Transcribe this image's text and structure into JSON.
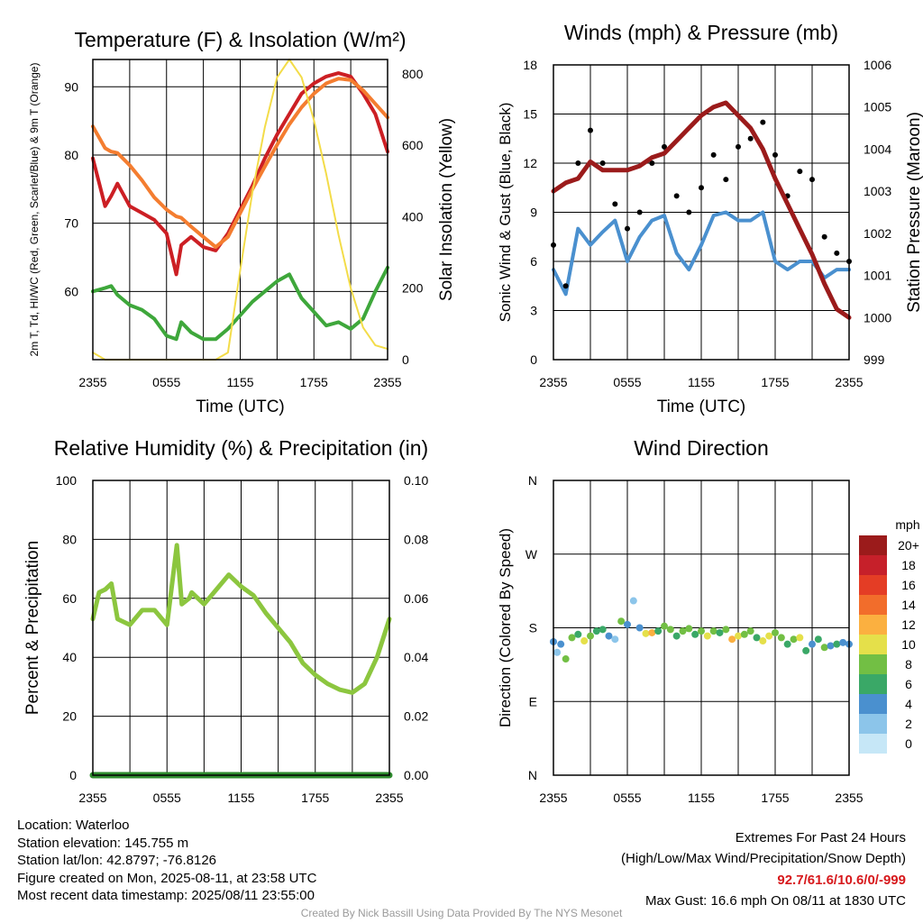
{
  "titles": {
    "temp": "Temperature (F) & Insolation (W/m²)",
    "wind": "Winds (mph) & Pressure (mb)",
    "rh": "Relative Humidity (%) & Precipitation (in)",
    "wdir": "Wind Direction"
  },
  "colors": {
    "red": "#cc1f24",
    "orange": "#f47d30",
    "green": "#3ea73b",
    "yellow": "#f3dc49",
    "blue": "#4a90cf",
    "black": "#000000",
    "maroon": "#9b1b1b",
    "lightgreen": "#8cc63f",
    "precip": "#2e8b2e"
  },
  "time_ticks": [
    "2355",
    "0555",
    "1155",
    "1755",
    "2355"
  ],
  "info": {
    "location": "Location: Waterloo",
    "elevation": "Station elevation: 145.755 m",
    "latlon": "Station lat/lon: 42.8797; -76.8126",
    "created": "Figure created on Mon, 2025-08-11, at 23:58 UTC",
    "recent": "Most recent data timestamp: 2025/08/11 23:55:00"
  },
  "extremes": {
    "title": "Extremes For Past 24 Hours",
    "subtitle": "(High/Low/Max Wind/Precipitation/Snow Depth)",
    "values": "92.7/61.6/10.6/0/-999",
    "gust": "Max Gust: 16.6 mph On 08/11 at 1830 UTC"
  },
  "credit": "Created By Nick Bassill Using Data Provided By The NYS Mesonet",
  "chart_data": [
    {
      "type": "line",
      "title": "Temperature (F) & Insolation (W/m²)",
      "xlabel": "Time (UTC)",
      "ylabel_left": "2m T, Td, HI/WC (Red, Green, Scarlet/Blue) & 9m T (Orange)",
      "ylabel_right": "Solar Insolation (Yellow)",
      "x_ticks": [
        "2355",
        "0555",
        "1155",
        "1755",
        "2355"
      ],
      "ylim": [
        50,
        94
      ],
      "y_ticks": [
        60,
        70,
        80,
        90
      ],
      "y2lim": [
        0,
        840
      ],
      "y2_ticks": [
        0,
        200,
        400,
        600,
        800
      ],
      "x_hours": [
        0,
        1,
        1.5,
        2,
        3,
        4,
        5,
        6,
        6.8,
        7.2,
        8,
        9,
        10,
        11,
        12,
        13,
        14,
        15,
        16,
        17,
        18,
        19,
        20,
        21,
        22,
        23,
        24
      ],
      "series": [
        {
          "name": "2m T",
          "color": "red",
          "axis": "left",
          "values": [
            79.5,
            72.5,
            74,
            75.8,
            72.5,
            71.5,
            70.5,
            68.5,
            62.5,
            66.8,
            68,
            66.5,
            66,
            68.5,
            72,
            75.5,
            79.5,
            83,
            86,
            89,
            90.5,
            91.5,
            92,
            91.5,
            89,
            86,
            80.5
          ]
        },
        {
          "name": "9m T",
          "color": "orange",
          "axis": "left",
          "values": [
            84.2,
            81,
            80.5,
            80.3,
            78.5,
            76.3,
            73.8,
            72,
            71,
            70.8,
            69.5,
            68,
            66.5,
            68,
            71.5,
            75,
            78.3,
            81.5,
            84.5,
            87,
            89,
            90.5,
            91.2,
            91,
            89.5,
            87.5,
            85.5
          ]
        },
        {
          "name": "Td",
          "color": "green",
          "axis": "left",
          "values": [
            60,
            60.5,
            60.8,
            59.5,
            58,
            57.3,
            56,
            53.5,
            53,
            55.5,
            54,
            53,
            53,
            54.5,
            56.5,
            58.5,
            60,
            61.5,
            62.5,
            59,
            57,
            55,
            55.5,
            54.5,
            56,
            60,
            63.5
          ]
        },
        {
          "name": "Solar",
          "color": "yellow",
          "axis": "right",
          "values": [
            20,
            0,
            0,
            0,
            0,
            0,
            0,
            0,
            0,
            0,
            0,
            0,
            0,
            20,
            250,
            470,
            650,
            790,
            840,
            790,
            670,
            520,
            350,
            200,
            90,
            40,
            30
          ]
        }
      ]
    },
    {
      "type": "line",
      "title": "Winds (mph) & Pressure (mb)",
      "xlabel": "Time (UTC)",
      "ylabel_left": "Sonic Wind & Gust (Blue, Black)",
      "ylabel_right": "Station Pressure (Maroon)",
      "x_ticks": [
        "2355",
        "0555",
        "1155",
        "1755",
        "2355"
      ],
      "ylim": [
        0,
        18
      ],
      "y_ticks": [
        0,
        3,
        6,
        9,
        12,
        15,
        18
      ],
      "y2lim": [
        999,
        1006
      ],
      "y2_ticks": [
        999,
        1000,
        1001,
        1002,
        1003,
        1004,
        1005,
        1006
      ],
      "x_hours": [
        0,
        1,
        2,
        3,
        4,
        5,
        6,
        7,
        8,
        9,
        10,
        11,
        12,
        13,
        14,
        15,
        16,
        17,
        18,
        19,
        20,
        21,
        22,
        23,
        24
      ],
      "series": [
        {
          "name": "Wind",
          "color": "blue",
          "axis": "left",
          "values": [
            5.5,
            4,
            8,
            7,
            7.8,
            8.5,
            6,
            7.5,
            8.5,
            8.8,
            6.5,
            5.5,
            7,
            8.8,
            9,
            8.5,
            8.5,
            9,
            6,
            5.5,
            6,
            6,
            5,
            5.5,
            5.5
          ]
        },
        {
          "name": "Gust",
          "color": "black",
          "axis": "left",
          "style": "dots",
          "values": [
            7,
            4.5,
            12,
            14,
            12,
            9.5,
            8,
            9,
            12,
            13,
            10,
            9,
            10.5,
            12.5,
            11,
            13,
            13.5,
            14.5,
            12.5,
            10,
            11.5,
            11,
            7.5,
            6.5,
            6
          ]
        },
        {
          "name": "Pressure",
          "color": "maroon",
          "axis": "right",
          "values": [
            1003.0,
            1003.2,
            1003.3,
            1003.7,
            1003.5,
            1003.5,
            1003.5,
            1003.6,
            1003.8,
            1003.9,
            1004.2,
            1004.5,
            1004.8,
            1005.0,
            1005.1,
            1004.8,
            1004.5,
            1004.0,
            1003.3,
            1002.7,
            1002.1,
            1001.5,
            1000.8,
            1000.2,
            1000.0
          ]
        }
      ]
    },
    {
      "type": "line",
      "title": "Relative Humidity (%) & Precipitation (in)",
      "xlabel": "",
      "ylabel_left": "Percent & Precipitation",
      "x_ticks": [
        "2355",
        "0555",
        "1155",
        "1755",
        "2355"
      ],
      "ylim": [
        0,
        100
      ],
      "y_ticks": [
        0,
        20,
        40,
        60,
        80,
        100
      ],
      "y2lim": [
        0,
        0.1
      ],
      "y2_ticks": [
        "0.00",
        "0.02",
        "0.04",
        "0.06",
        "0.08",
        "0.10"
      ],
      "x_hours": [
        0,
        0.5,
        1,
        1.5,
        2,
        3,
        4,
        5,
        6,
        6.8,
        7.2,
        7.8,
        8,
        9,
        10,
        11,
        12,
        13,
        14,
        15,
        16,
        17,
        18,
        19,
        20,
        21,
        22,
        23,
        24
      ],
      "series": [
        {
          "name": "RH",
          "color": "lightgreen",
          "axis": "left",
          "values": [
            53,
            62,
            63,
            65,
            53,
            51,
            56,
            56,
            51,
            78,
            58,
            60,
            62,
            58,
            63,
            68,
            64,
            61,
            55,
            50,
            45,
            38,
            34,
            31,
            29,
            28,
            31,
            40,
            53
          ]
        },
        {
          "name": "Precip",
          "color": "precip",
          "axis": "right",
          "values": [
            0,
            0,
            0,
            0,
            0,
            0,
            0,
            0,
            0,
            0,
            0,
            0,
            0,
            0,
            0,
            0,
            0,
            0,
            0,
            0,
            0,
            0,
            0,
            0,
            0,
            0,
            0,
            0,
            0
          ]
        }
      ]
    },
    {
      "type": "scatter",
      "title": "Wind Direction",
      "ylabel_left": "Direction (Colored By Speed)",
      "x_ticks": [
        "2355",
        "0555",
        "1155",
        "1755",
        "2355"
      ],
      "y_ticks": [
        "N",
        "E",
        "S",
        "W",
        "N"
      ],
      "ylim": [
        0,
        360
      ],
      "colorbar_unit": "mph",
      "colorbar_labels": [
        "0",
        "2",
        "4",
        "6",
        "8",
        "10",
        "12",
        "14",
        "16",
        "18",
        "20+"
      ],
      "colorbar_colors": [
        "#c6e7f7",
        "#8cc5ea",
        "#4a90cf",
        "#3aa867",
        "#72bf44",
        "#e5e04a",
        "#fbb040",
        "#f26d2b",
        "#e43d25",
        "#c6202a",
        "#9b1b1b"
      ],
      "x_hours": [
        0,
        0.3,
        0.6,
        1,
        1.5,
        2,
        2.5,
        3,
        3.5,
        4,
        4.5,
        5,
        5.5,
        6,
        6.5,
        7,
        7.5,
        8,
        8.5,
        9,
        9.5,
        10,
        10.5,
        11,
        11.5,
        12,
        12.5,
        13,
        13.5,
        14,
        14.5,
        15,
        15.5,
        16,
        16.5,
        17,
        17.5,
        18,
        18.5,
        19,
        19.5,
        20,
        20.5,
        21,
        21.5,
        22,
        22.5,
        23,
        23.5,
        24
      ],
      "directions": [
        163,
        150,
        160,
        142,
        168,
        172,
        164,
        170,
        176,
        178,
        170,
        166,
        188,
        184,
        213,
        180,
        173,
        174,
        176,
        182,
        178,
        170,
        176,
        179,
        172,
        176,
        170,
        176,
        174,
        178,
        166,
        170,
        172,
        176,
        168,
        164,
        170,
        174,
        168,
        160,
        166,
        168,
        152,
        160,
        166,
        156,
        158,
        160,
        162,
        160
      ],
      "speeds": [
        5,
        3,
        4,
        9,
        8,
        7,
        11,
        8,
        6,
        7,
        4,
        3,
        8,
        5,
        2,
        4,
        10,
        12,
        7,
        8,
        9,
        6,
        8,
        9,
        7,
        8,
        10,
        8,
        6,
        9,
        12,
        10,
        8,
        9,
        7,
        11,
        10,
        8,
        9,
        6,
        8,
        10,
        7,
        5,
        6,
        8,
        5,
        6,
        4,
        4
      ]
    }
  ]
}
